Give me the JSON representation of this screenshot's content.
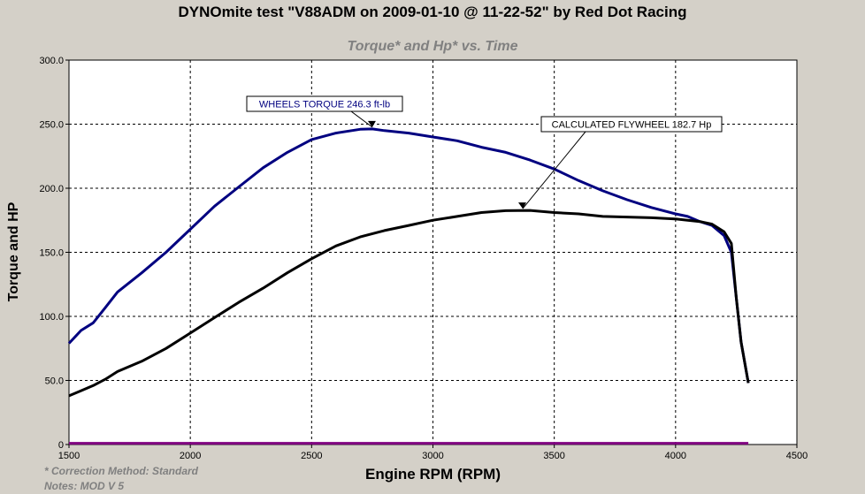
{
  "chart_data": {
    "type": "line",
    "title": "DYNOmite test \"V88ADM on 2009-01-10 @ 11-22-52\" by Red Dot Racing",
    "subtitle": "Torque* and Hp* vs. Time",
    "xlabel": "Engine RPM (RPM)",
    "ylabel": "Torque and HP",
    "xlim": [
      1500,
      4500
    ],
    "ylim": [
      0,
      300
    ],
    "x_ticks": [
      "1500",
      "2000",
      "2500",
      "3000",
      "3500",
      "4000",
      "4500"
    ],
    "y_ticks": [
      "0",
      "50.0",
      "100.0",
      "150.0",
      "200.0",
      "250.0",
      "300.0"
    ],
    "grid": true,
    "series": [
      {
        "color": "#000080",
        "x": [
          1500,
          1550,
          1600,
          1650,
          1700,
          1800,
          1900,
          2000,
          2100,
          2200,
          2300,
          2400,
          2500,
          2600,
          2700,
          2750,
          2800,
          2900,
          3000,
          3100,
          3200,
          3300,
          3400,
          3500,
          3600,
          3700,
          3800,
          3900,
          4000,
          4050,
          4100,
          4150,
          4200,
          4230,
          4250,
          4270,
          4300
        ],
        "y": [
          79,
          89,
          95,
          107,
          119,
          134,
          150,
          168,
          186,
          201,
          216,
          228,
          238,
          243,
          246,
          246.3,
          245,
          243,
          240,
          237,
          232,
          228,
          222,
          215,
          206,
          198,
          191,
          185,
          180,
          178,
          174,
          171,
          163,
          150,
          115,
          80,
          48
        ]
      },
      {
        "color": "#000000",
        "x": [
          1500,
          1550,
          1600,
          1650,
          1700,
          1800,
          1900,
          2000,
          2100,
          2200,
          2300,
          2400,
          2500,
          2600,
          2700,
          2800,
          2900,
          3000,
          3100,
          3200,
          3300,
          3400,
          3500,
          3600,
          3700,
          3800,
          3900,
          4000,
          4050,
          4100,
          4150,
          4200,
          4230,
          4250,
          4270,
          4300
        ],
        "y": [
          38,
          42,
          46,
          51,
          57,
          65,
          75,
          87,
          99,
          111,
          122,
          134,
          145,
          155,
          162,
          167,
          171,
          175,
          178,
          181,
          182.5,
          182.7,
          181,
          180,
          178,
          177.5,
          177,
          176,
          175,
          174,
          172,
          166,
          157,
          115,
          80,
          48
        ]
      },
      {
        "color": "#800080",
        "x": [
          1500,
          4300
        ],
        "y": [
          1,
          1
        ]
      }
    ],
    "annotations": [
      {
        "text": "WHEELS TORQUE 246.3 ft-lb",
        "color": "#000080",
        "point": [
          2750,
          246.3
        ]
      },
      {
        "text": "CALCULATED FLYWHEEL 182.7 Hp",
        "color": "#000000",
        "point": [
          3370,
          182.7
        ]
      }
    ]
  },
  "notes": {
    "correction": "* Correction Method: Standard",
    "notes": "Notes: MOD V 5"
  }
}
